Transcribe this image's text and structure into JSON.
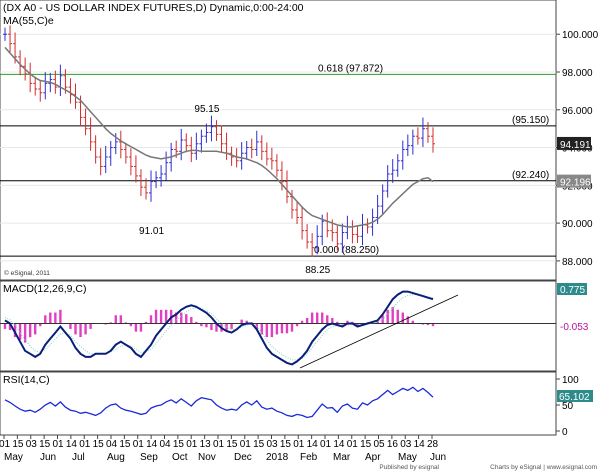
{
  "chart_data": {
    "type": "line",
    "panels": {
      "price": {
        "title": "(DX A0 - US DOLLAR INDEX FUTURES,D) Dynamic,0:00-24:00",
        "ma_label": "MA(55,C)e",
        "ylim": [
          87.2,
          101.6
        ],
        "yticks": [
          "100.000",
          "98.000",
          "96.000",
          "94.000",
          "92.000",
          "90.000",
          "88.000"
        ],
        "last_price": "94.191",
        "ma_last": "92.196",
        "ohlc": [
          100.0,
          99.5,
          98.8,
          98.3,
          97.9,
          97.4,
          97.1,
          96.9,
          97.4,
          97.6,
          97.2,
          97.8,
          97.2,
          96.8,
          96.4,
          95.6,
          95.0,
          94.3,
          93.5,
          93.0,
          93.5,
          94.0,
          94.3,
          93.9,
          93.5,
          93.0,
          92.5,
          91.9,
          91.6,
          92.2,
          92.4,
          92.6,
          93.2,
          93.9,
          93.8,
          94.4,
          94.1,
          93.7,
          94.2,
          94.6,
          94.8,
          95.1,
          94.7,
          94.2,
          93.7,
          93.5,
          93.3,
          93.7,
          94.0,
          93.9,
          94.3,
          93.8,
          93.4,
          93.3,
          92.8,
          92.2,
          91.4,
          90.7,
          90.3,
          89.6,
          89.0,
          88.7,
          89.3,
          90.1,
          89.6,
          89.5,
          88.9,
          89.5,
          89.8,
          89.4,
          89.3,
          89.9,
          89.8,
          90.3,
          90.9,
          91.7,
          92.6,
          92.8,
          93.3,
          93.9,
          94.1,
          94.6,
          94.5,
          95.0,
          94.6,
          94.2
        ],
        "ma": [
          99.3,
          99.0,
          98.7,
          98.4,
          98.15,
          97.9,
          97.7,
          97.55,
          97.5,
          97.45,
          97.35,
          97.2,
          97.05,
          96.9,
          96.7,
          96.5,
          96.2,
          95.9,
          95.6,
          95.3,
          95.0,
          94.75,
          94.55,
          94.35,
          94.2,
          94.05,
          93.9,
          93.75,
          93.6,
          93.5,
          93.45,
          93.4,
          93.45,
          93.5,
          93.6,
          93.7,
          93.8,
          93.85,
          93.85,
          93.8,
          93.8,
          93.8,
          93.8,
          93.75,
          93.7,
          93.6,
          93.5,
          93.45,
          93.4,
          93.3,
          93.2,
          93.05,
          92.85,
          92.6,
          92.35,
          92.05,
          91.75,
          91.45,
          91.15,
          90.85,
          90.6,
          90.4,
          90.3,
          90.2,
          90.1,
          90.0,
          89.9,
          89.85,
          89.8,
          89.8,
          89.85,
          89.9,
          89.95,
          90.05,
          90.2,
          90.45,
          90.75,
          91.05,
          91.3,
          91.55,
          91.8,
          92.05,
          92.2,
          92.35,
          92.4,
          92.2
        ],
        "hlines": [
          {
            "y": 97.872,
            "label": "0.618 (97.872)",
            "color": "#2e9b2e"
          },
          {
            "y": 95.15,
            "label": "(95.150)",
            "color": "#000000"
          },
          {
            "y": 92.24,
            "label": "(92.240)",
            "color": "#000000"
          },
          {
            "y": 88.25,
            "label": "0.000 (88.250)",
            "color": "#000000"
          }
        ],
        "annotations": [
          {
            "text": "95.15",
            "x_index": 40,
            "y": 95.15
          },
          {
            "text": "91.01",
            "x_index": 29,
            "y": 91.01
          },
          {
            "text": "88.25",
            "x_index": 62,
            "y": 88.25
          }
        ],
        "watermark": "© eSignal, 2011"
      },
      "macd": {
        "title": "MACD(12,26,9,C)",
        "ylim": [
          -1.5,
          1.3
        ],
        "zero": 0,
        "last_macd": "0.775",
        "last_hist": "-0.053",
        "macd": [
          0.1,
          0.0,
          -0.3,
          -0.6,
          -0.9,
          -1.0,
          -1.1,
          -1.0,
          -0.7,
          -0.5,
          -0.3,
          -0.1,
          -0.3,
          -0.5,
          -0.8,
          -1.0,
          -1.1,
          -1.1,
          -1.0,
          -1.0,
          -1.0,
          -0.9,
          -0.7,
          -0.6,
          -0.7,
          -0.8,
          -1.0,
          -1.1,
          -0.9,
          -0.7,
          -0.4,
          -0.2,
          0.0,
          0.2,
          0.3,
          0.45,
          0.55,
          0.6,
          0.55,
          0.45,
          0.35,
          0.2,
          0.0,
          -0.15,
          -0.25,
          -0.3,
          -0.2,
          -0.05,
          0.0,
          0.0,
          -0.2,
          -0.5,
          -0.8,
          -1.0,
          -1.1,
          -1.2,
          -1.3,
          -1.35,
          -1.25,
          -1.1,
          -0.9,
          -0.6,
          -0.4,
          -0.2,
          -0.05,
          0.0,
          -0.05,
          -0.1,
          0.0,
          0.0,
          -0.1,
          -0.05,
          0.0,
          0.05,
          0.1,
          0.3,
          0.55,
          0.8,
          0.95,
          1.05,
          1.05,
          1.0,
          0.95,
          0.9,
          0.85,
          0.8
        ],
        "signal": [
          0.2,
          0.12,
          -0.05,
          -0.3,
          -0.55,
          -0.75,
          -0.9,
          -0.95,
          -0.85,
          -0.7,
          -0.5,
          -0.35,
          -0.3,
          -0.4,
          -0.6,
          -0.75,
          -0.9,
          -1.0,
          -1.0,
          -1.0,
          -0.98,
          -0.92,
          -0.85,
          -0.75,
          -0.72,
          -0.75,
          -0.85,
          -0.95,
          -0.93,
          -0.85,
          -0.65,
          -0.45,
          -0.25,
          -0.05,
          0.1,
          0.25,
          0.38,
          0.48,
          0.52,
          0.5,
          0.42,
          0.32,
          0.15,
          0.0,
          -0.12,
          -0.2,
          -0.2,
          -0.12,
          -0.05,
          -0.02,
          -0.1,
          -0.3,
          -0.55,
          -0.75,
          -0.9,
          -1.02,
          -1.12,
          -1.2,
          -1.2,
          -1.15,
          -1.0,
          -0.8,
          -0.6,
          -0.4,
          -0.2,
          -0.1,
          -0.08,
          -0.08,
          -0.05,
          -0.03,
          -0.05,
          -0.05,
          -0.02,
          0.02,
          0.06,
          0.15,
          0.3,
          0.5,
          0.7,
          0.85,
          0.92,
          0.95,
          0.95,
          0.92,
          0.88,
          0.85
        ]
      },
      "rsi": {
        "title": "RSI(14,C)",
        "ylim": [
          0,
          100
        ],
        "yticks": [
          "100",
          "50",
          "0"
        ],
        "last": "65.102",
        "values": [
          60,
          55,
          48,
          42,
          38,
          40,
          36,
          42,
          50,
          55,
          48,
          56,
          46,
          40,
          38,
          34,
          36,
          33,
          30,
          35,
          44,
          50,
          52,
          44,
          40,
          38,
          35,
          32,
          34,
          44,
          48,
          50,
          56,
          60,
          54,
          62,
          55,
          48,
          58,
          64,
          62,
          60,
          50,
          44,
          40,
          42,
          40,
          50,
          56,
          50,
          58,
          46,
          42,
          44,
          38,
          35,
          30,
          28,
          32,
          30,
          26,
          28,
          40,
          52,
          44,
          45,
          36,
          48,
          52,
          44,
          42,
          54,
          50,
          58,
          62,
          70,
          78,
          70,
          76,
          82,
          78,
          84,
          76,
          82,
          74,
          65
        ]
      }
    },
    "x_day_labels": [
      "01",
      "15",
      "03",
      "15",
      "01",
      "14",
      "01",
      "15",
      "04",
      "15",
      "01",
      "14",
      "04",
      "15",
      "01",
      "13",
      "01",
      "15",
      "01",
      "15",
      "03",
      "15",
      "01",
      "14",
      "01",
      "14",
      "01",
      "15",
      "05",
      "16",
      "03",
      "14",
      "28"
    ],
    "x_month_labels": [
      "May",
      "Jun",
      "Jul",
      "Aug",
      "Sep",
      "Oct",
      "Nov",
      "Dec",
      "2018",
      "Feb",
      "Mar",
      "Apr",
      "May",
      "Jun"
    ],
    "credits": {
      "left": "Published by esignal",
      "right": "Charts by eSignal | www.esignal.com"
    }
  }
}
